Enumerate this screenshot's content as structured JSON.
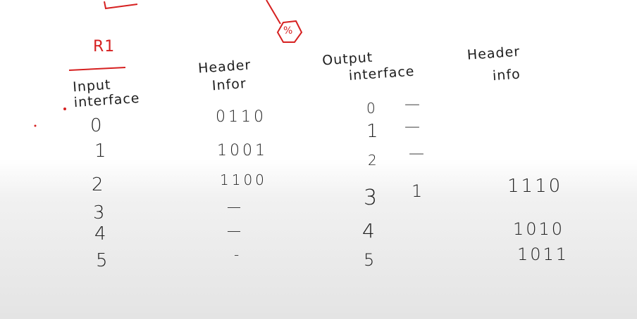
{
  "router_label": "R1",
  "headers": {
    "input_interface": [
      "Input",
      "interface"
    ],
    "left_header_info": [
      "Header",
      "Infor"
    ],
    "output_interface": [
      "Output",
      "interface"
    ],
    "right_header_info": [
      "Header",
      "info"
    ]
  },
  "input_interfaces": [
    "0",
    "1",
    "2",
    "3",
    "4",
    "5"
  ],
  "left_header_values": [
    "0110",
    "1001",
    "1100",
    "—",
    "—",
    "-"
  ],
  "output_interfaces": [
    "0",
    "1",
    "2",
    "3",
    "4",
    "5"
  ],
  "output_marks": [
    "—",
    "—",
    "—",
    "1",
    "",
    ""
  ],
  "right_header_values": [
    "1110",
    "1010",
    "1011"
  ],
  "colors": {
    "ink": "#1d1d1d",
    "red_ink": "#d62020"
  }
}
